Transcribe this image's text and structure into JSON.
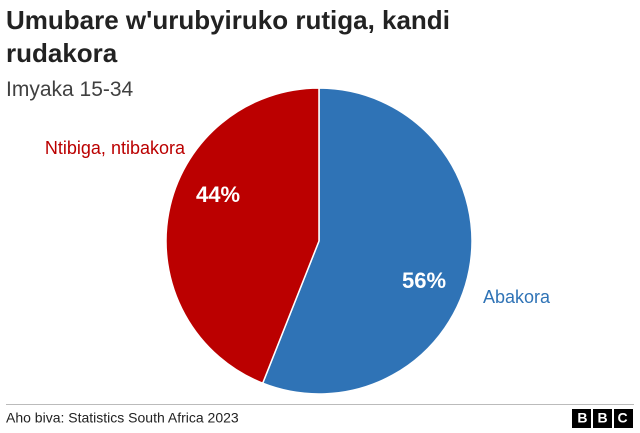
{
  "chart_data": {
    "type": "pie",
    "title": "Umubare w'urubyiruko rutiga, kandi rudakora",
    "subtitle": "Imyaka 15-34",
    "categories": [
      "Abakora",
      "Ntibiga, ntibakora"
    ],
    "values": [
      56,
      44
    ],
    "value_labels": [
      "56%",
      "44%"
    ],
    "colors": [
      "#2f73b6",
      "#bb0000"
    ],
    "source": "Aho biva: Statistics South Africa 2023",
    "logo": "BBC"
  }
}
